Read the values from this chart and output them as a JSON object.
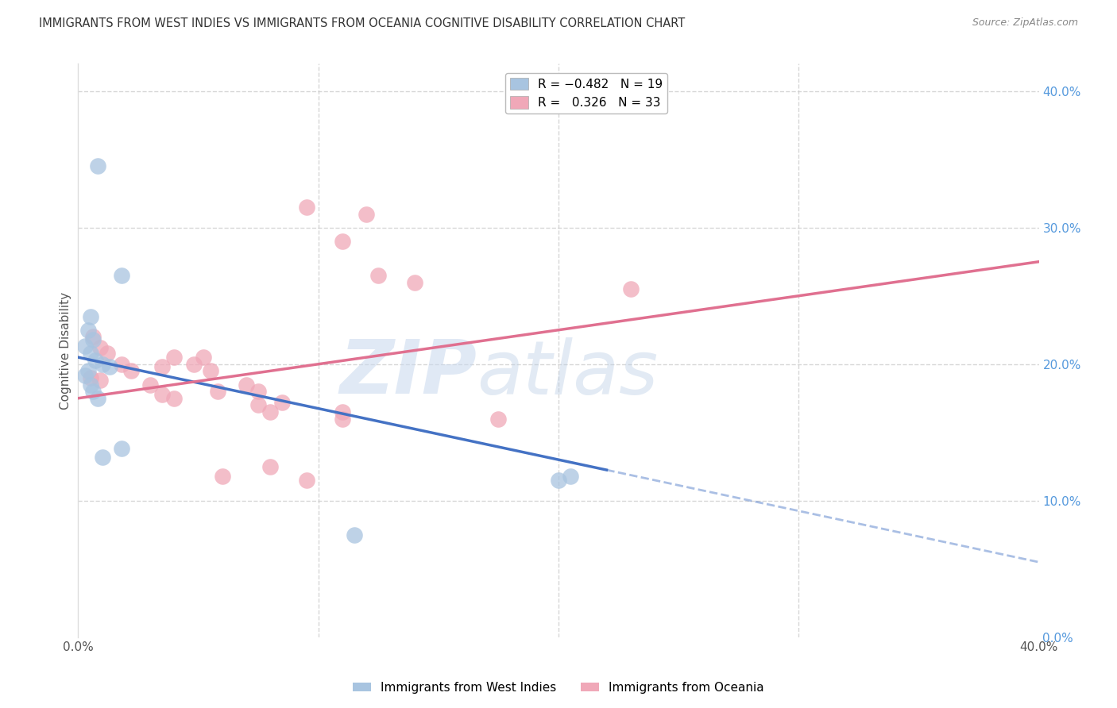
{
  "title": "IMMIGRANTS FROM WEST INDIES VS IMMIGRANTS FROM OCEANIA COGNITIVE DISABILITY CORRELATION CHART",
  "source": "Source: ZipAtlas.com",
  "ylabel": "Cognitive Disability",
  "right_yticks": [
    "40.0%",
    "30.0%",
    "20.0%",
    "10.0%",
    "0.0%"
  ],
  "right_ytick_vals": [
    40,
    30,
    20,
    10,
    0
  ],
  "blue_dots": [
    [
      0.8,
      34.5
    ],
    [
      1.8,
      26.5
    ],
    [
      0.5,
      23.5
    ],
    [
      0.4,
      22.5
    ],
    [
      0.6,
      21.8
    ],
    [
      0.3,
      21.3
    ],
    [
      0.5,
      20.8
    ],
    [
      0.7,
      20.3
    ],
    [
      1.0,
      20.0
    ],
    [
      1.3,
      19.8
    ],
    [
      0.4,
      19.5
    ],
    [
      0.3,
      19.2
    ],
    [
      0.5,
      18.5
    ],
    [
      0.6,
      18.0
    ],
    [
      0.8,
      17.5
    ],
    [
      1.8,
      13.8
    ],
    [
      1.0,
      13.2
    ],
    [
      20.5,
      11.8
    ],
    [
      20.0,
      11.5
    ],
    [
      11.5,
      7.5
    ]
  ],
  "pink_dots": [
    [
      9.5,
      31.5
    ],
    [
      12.0,
      31.0
    ],
    [
      11.0,
      29.0
    ],
    [
      12.5,
      26.5
    ],
    [
      14.0,
      26.0
    ],
    [
      0.6,
      22.0
    ],
    [
      0.9,
      21.2
    ],
    [
      1.2,
      20.8
    ],
    [
      4.0,
      20.5
    ],
    [
      5.2,
      20.5
    ],
    [
      1.8,
      20.0
    ],
    [
      4.8,
      20.0
    ],
    [
      3.5,
      19.8
    ],
    [
      2.2,
      19.5
    ],
    [
      5.5,
      19.5
    ],
    [
      0.5,
      19.0
    ],
    [
      0.9,
      18.8
    ],
    [
      3.0,
      18.5
    ],
    [
      7.0,
      18.5
    ],
    [
      5.8,
      18.0
    ],
    [
      7.5,
      18.0
    ],
    [
      3.5,
      17.8
    ],
    [
      4.0,
      17.5
    ],
    [
      8.5,
      17.2
    ],
    [
      7.5,
      17.0
    ],
    [
      8.0,
      16.5
    ],
    [
      11.0,
      16.0
    ],
    [
      17.5,
      16.0
    ],
    [
      23.0,
      25.5
    ],
    [
      11.0,
      16.5
    ],
    [
      8.0,
      12.5
    ],
    [
      9.5,
      11.5
    ],
    [
      6.0,
      11.8
    ]
  ],
  "blue_line_x0": 0.0,
  "blue_line_x1": 40.0,
  "blue_line_y0": 20.5,
  "blue_line_y1": 5.5,
  "blue_solid_end_x": 22.0,
  "pink_line_x0": 0.0,
  "pink_line_x1": 40.0,
  "pink_line_y0": 17.5,
  "pink_line_y1": 27.5,
  "blue_line_color": "#4472c4",
  "pink_line_color": "#e07090",
  "dot_blue_color": "#a8c4e0",
  "dot_pink_color": "#f0a8b8",
  "watermark_zip": "ZIP",
  "watermark_atlas": "atlas",
  "xlim": [
    0,
    40
  ],
  "ylim": [
    0,
    42
  ],
  "background_color": "#ffffff",
  "grid_color": "#cccccc"
}
